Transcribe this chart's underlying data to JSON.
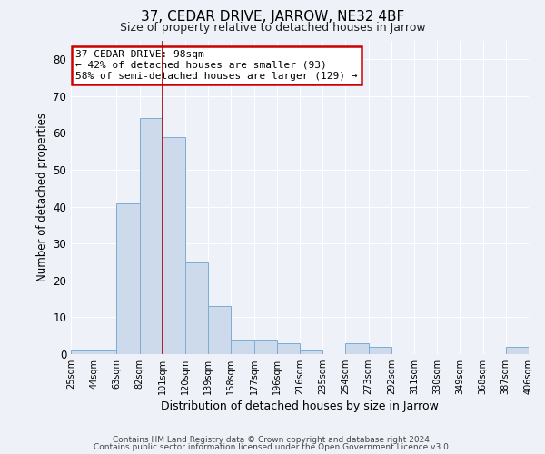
{
  "title": "37, CEDAR DRIVE, JARROW, NE32 4BF",
  "subtitle": "Size of property relative to detached houses in Jarrow",
  "xlabel": "Distribution of detached houses by size in Jarrow",
  "ylabel": "Number of detached properties",
  "footer_line1": "Contains HM Land Registry data © Crown copyright and database right 2024.",
  "footer_line2": "Contains public sector information licensed under the Open Government Licence v3.0.",
  "bin_labels": [
    "25sqm",
    "44sqm",
    "63sqm",
    "82sqm",
    "101sqm",
    "120sqm",
    "139sqm",
    "158sqm",
    "177sqm",
    "196sqm",
    "216sqm",
    "235sqm",
    "254sqm",
    "273sqm",
    "292sqm",
    "311sqm",
    "330sqm",
    "349sqm",
    "368sqm",
    "387sqm",
    "406sqm"
  ],
  "bar_values": [
    1,
    1,
    41,
    64,
    59,
    25,
    13,
    4,
    4,
    3,
    1,
    0,
    3,
    2,
    0,
    0,
    0,
    0,
    0,
    2
  ],
  "bar_color": "#cddaec",
  "bar_edge_color": "#7badd4",
  "vline_x_index": 4,
  "vline_color": "#aa0000",
  "annotation_title": "37 CEDAR DRIVE: 98sqm",
  "annotation_line1": "← 42% of detached houses are smaller (93)",
  "annotation_line2": "58% of semi-detached houses are larger (129) →",
  "annotation_box_color": "#cc0000",
  "ylim": [
    0,
    85
  ],
  "yticks": [
    0,
    10,
    20,
    30,
    40,
    50,
    60,
    70,
    80
  ],
  "bg_color": "#eef2f8",
  "grid_color": "#ffffff",
  "title_fontsize": 11,
  "subtitle_fontsize": 9
}
